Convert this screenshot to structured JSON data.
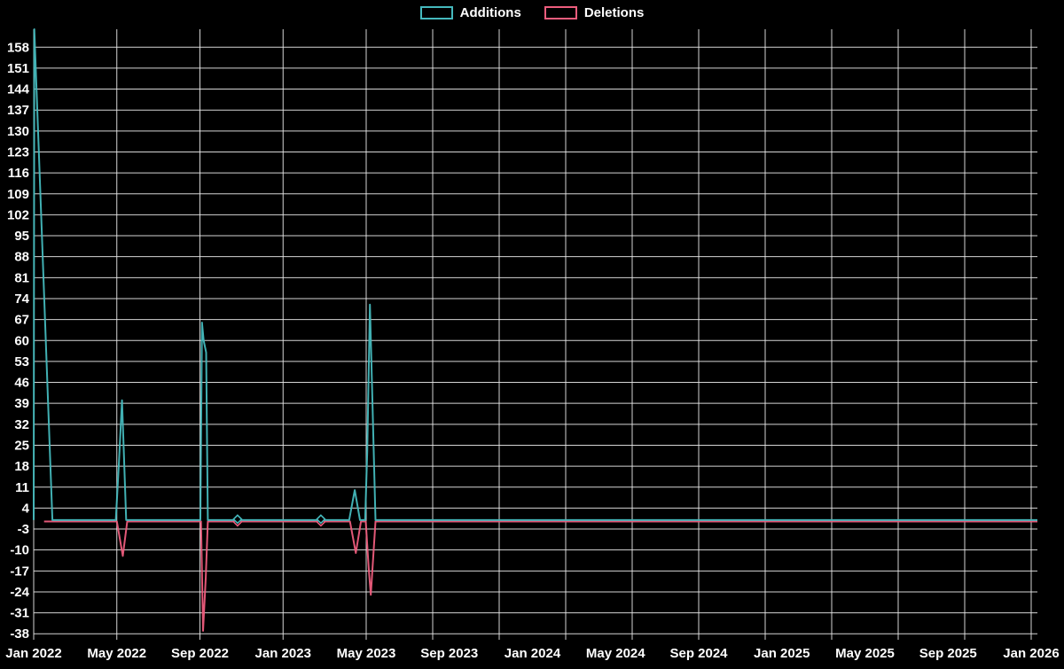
{
  "legend": {
    "items": [
      {
        "label": "Additions",
        "color": "#45b9bd"
      },
      {
        "label": "Deletions",
        "color": "#ee5d7d"
      }
    ]
  },
  "chart_data": {
    "type": "line",
    "title": "",
    "legend_position": "top-center",
    "grid": true,
    "background": "#000000",
    "gridline_color": "#e8e8e8",
    "text_color": "#ffffff",
    "x_axis": {
      "unit": "months since Jan 2022",
      "labels": [
        "Jan 2022",
        "May 2022",
        "Sep 2022",
        "Jan 2023",
        "May 2023",
        "Sep 2023",
        "Jan 2024",
        "May 2024",
        "Sep 2024",
        "Jan 2025",
        "May 2025",
        "Sep 2025",
        "Jan 2026"
      ],
      "label_months": [
        0,
        4,
        8,
        12,
        16,
        20,
        24,
        28,
        32,
        36,
        40,
        44,
        48
      ],
      "gridline_months": [
        0,
        4,
        8,
        12,
        16,
        19.2,
        22.4,
        25.6,
        28.8,
        32,
        35.2,
        38.4,
        41.6,
        44.8,
        48
      ],
      "range_months": [
        0,
        48.3
      ]
    },
    "y_axis": {
      "tick_values": [
        158,
        151,
        144,
        137,
        130,
        123,
        116,
        109,
        102,
        95,
        88,
        81,
        74,
        67,
        60,
        53,
        46,
        39,
        32,
        25,
        18,
        11,
        4,
        -3,
        -10,
        -17,
        -24,
        -31,
        -38
      ],
      "min": -40,
      "max": 164
    },
    "series": [
      {
        "name": "Additions",
        "color": "#45b9bd",
        "points": [
          [
            0,
            0
          ],
          [
            0.03,
            164
          ],
          [
            0.9,
            0
          ],
          [
            3.95,
            0
          ],
          [
            4.1,
            19
          ],
          [
            4.25,
            40
          ],
          [
            4.33,
            24
          ],
          [
            4.45,
            0
          ],
          [
            8.02,
            0
          ],
          [
            8.1,
            66
          ],
          [
            8.18,
            60
          ],
          [
            8.3,
            56
          ],
          [
            8.38,
            0
          ],
          [
            9.8,
            0
          ],
          [
            13.8,
            0
          ],
          [
            15.18,
            0
          ],
          [
            15.45,
            10
          ],
          [
            15.7,
            0
          ],
          [
            15.95,
            0
          ],
          [
            16.05,
            23
          ],
          [
            16.18,
            72
          ],
          [
            16.3,
            40
          ],
          [
            16.45,
            0
          ],
          [
            48.3,
            0
          ]
        ]
      },
      {
        "name": "Deletions",
        "color": "#ee5d7d",
        "points": [
          [
            0.5,
            0
          ],
          [
            4.0,
            0
          ],
          [
            4.29,
            -12
          ],
          [
            4.5,
            0
          ],
          [
            8.05,
            0
          ],
          [
            8.15,
            -37
          ],
          [
            8.28,
            -19
          ],
          [
            8.38,
            0
          ],
          [
            9.8,
            0
          ],
          [
            13.8,
            0
          ],
          [
            15.22,
            0
          ],
          [
            15.5,
            -11
          ],
          [
            15.75,
            0
          ],
          [
            15.98,
            0
          ],
          [
            16.12,
            -16
          ],
          [
            16.22,
            -25
          ],
          [
            16.45,
            0
          ],
          [
            48.3,
            0
          ]
        ]
      }
    ],
    "zero_markers": {
      "months": [
        9.81,
        13.82
      ],
      "value": 0
    }
  }
}
